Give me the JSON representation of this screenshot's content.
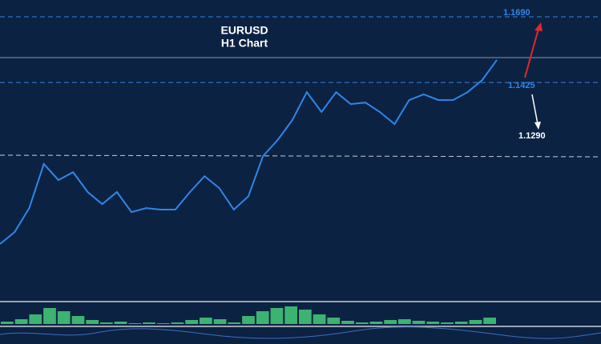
{
  "chart_data": [
    {
      "type": "line",
      "title": "EURUSD",
      "subtitle": "H1 Chart",
      "ylim": [
        1.0547,
        1.1758
      ],
      "series": [
        {
          "color": "#2f86e8",
          "values": [
            1.0773,
            1.0821,
            1.0918,
            1.1096,
            1.1031,
            1.1063,
            1.0983,
            1.0934,
            1.0983,
            1.0902,
            1.0918,
            1.0912,
            1.0912,
            1.0983,
            1.1047,
            1.0999,
            1.0912,
            1.0966,
            1.1128,
            1.1193,
            1.1273,
            1.1386,
            1.1306,
            1.1386,
            1.1338,
            1.1344,
            1.1306,
            1.1257,
            1.1354,
            1.1377,
            1.1354,
            1.1354,
            1.1386,
            1.1435,
            1.1516
          ]
        }
      ],
      "levels": [
        {
          "value": 1.169,
          "label": "1.1690"
        },
        1.1425
      ],
      "targets": [
        {
          "value": 1.129,
          "label": "1.1290"
        }
      ],
      "level_color": "#2f86e8"
    },
    {
      "type": "bar",
      "color": "#3cb371",
      "ylim": [
        0,
        25
      ],
      "values": [
        3,
        6,
        12,
        20,
        16,
        10,
        5,
        2,
        3,
        1,
        2,
        1,
        2,
        5,
        8,
        6,
        2,
        10,
        16,
        20,
        22,
        18,
        12,
        8,
        4,
        2,
        3,
        5,
        6,
        4,
        3,
        2,
        3,
        5,
        8
      ]
    }
  ]
}
